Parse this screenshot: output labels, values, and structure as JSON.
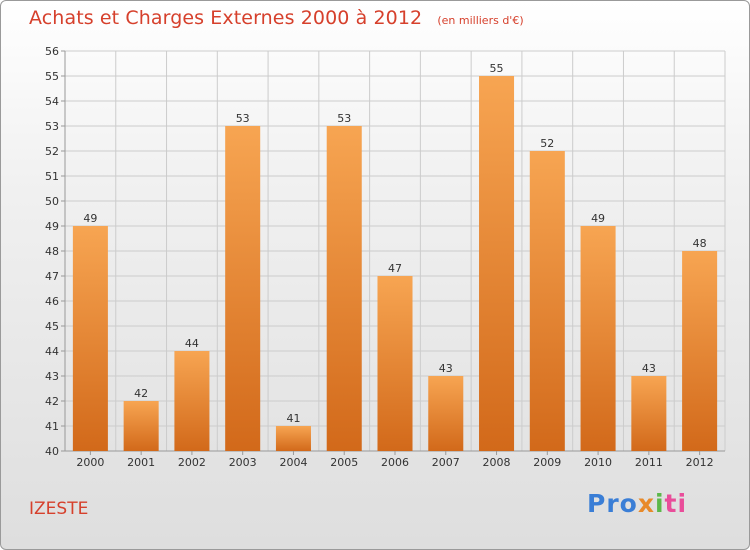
{
  "header": {
    "title": "Achats et Charges Externes 2000 à 2012",
    "unit": "(en milliers d'€)"
  },
  "footer": {
    "location": "IZESTE",
    "logo_parts": [
      "Pro",
      "x",
      "i",
      "ti"
    ]
  },
  "colors": {
    "bar_top": "#f7a552",
    "bar_bottom": "#d2691a",
    "title": "#d6402c",
    "grid": "#cccccc"
  },
  "chart_data": {
    "type": "bar",
    "title": "Achats et Charges Externes 2000 à 2012",
    "subtitle": "(en milliers d'€)",
    "categories": [
      "2000",
      "2001",
      "2002",
      "2003",
      "2004",
      "2005",
      "2006",
      "2007",
      "2008",
      "2009",
      "2010",
      "2011",
      "2012"
    ],
    "values": [
      49,
      42,
      44,
      53,
      41,
      53,
      47,
      43,
      55,
      52,
      49,
      43,
      48
    ],
    "ylim": [
      40,
      56
    ],
    "yticks": [
      40,
      41,
      42,
      43,
      44,
      45,
      46,
      47,
      48,
      49,
      50,
      51,
      52,
      53,
      54,
      55,
      56
    ],
    "grid": true,
    "data_labels": true
  }
}
